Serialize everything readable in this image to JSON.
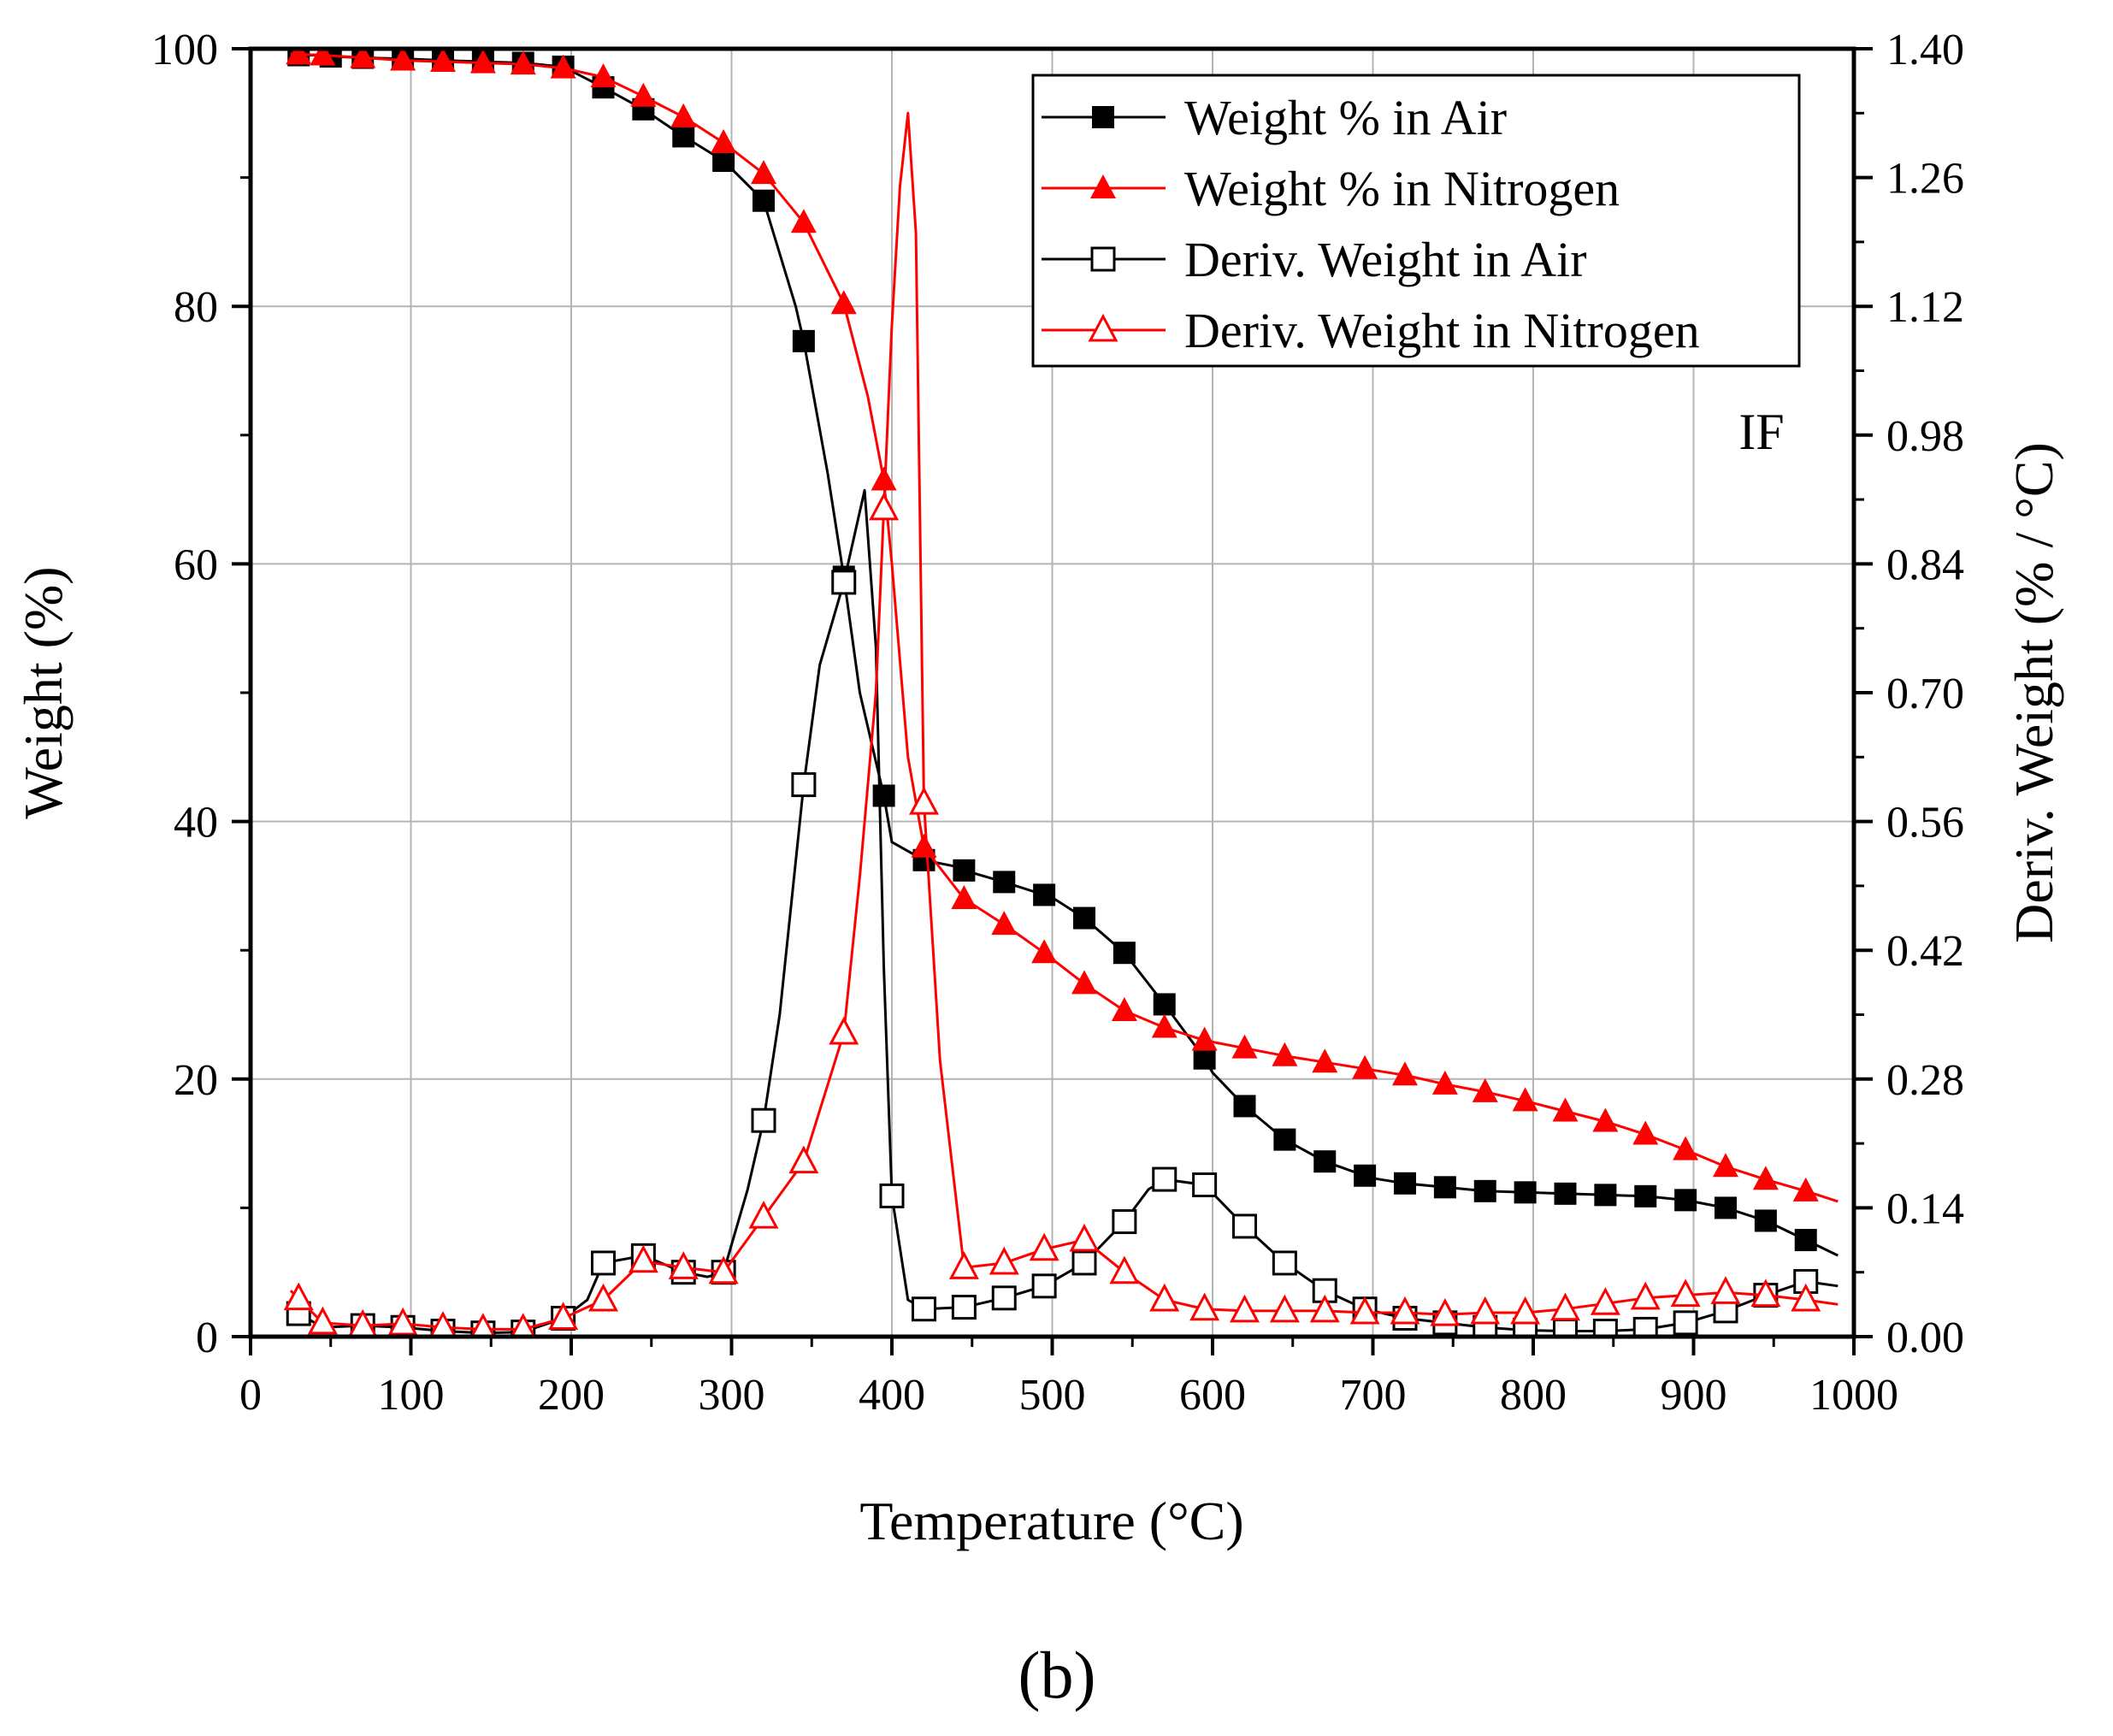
{
  "chart_data": {
    "type": "line",
    "title": "",
    "panel_label": "(b)",
    "annotation": "IF",
    "xlabel": "Temperature (°C)",
    "ylabel_left": "Weight (%)",
    "ylabel_right": "Deriv. Weight (% / °C)",
    "xlim": [
      0,
      1000
    ],
    "ylim_left": [
      0,
      100
    ],
    "ylim_right": [
      0,
      1.4
    ],
    "x_ticks": [
      "0",
      "100",
      "200",
      "300",
      "400",
      "500",
      "600",
      "700",
      "800",
      "900",
      "1000"
    ],
    "y_ticks_left": [
      "0",
      "20",
      "40",
      "60",
      "80",
      "100"
    ],
    "y_ticks_right": [
      "0.00",
      "0.14",
      "0.28",
      "0.42",
      "0.56",
      "0.70",
      "0.84",
      "0.98",
      "1.12",
      "1.26",
      "1.40"
    ],
    "grid": true,
    "legend_position": "top-right",
    "series": [
      {
        "name": "Weight % in Air",
        "axis": "left",
        "color": "#000000",
        "marker": "square-filled",
        "x": [
          25,
          40,
          50,
          70,
          100,
          120,
          145,
          170,
          195,
          220,
          245,
          270,
          295,
          320,
          340,
          345,
          360,
          370,
          380,
          395,
          400,
          420,
          440,
          445,
          470,
          500,
          520,
          545,
          570,
          595,
          600,
          620,
          645,
          670,
          695,
          700,
          720,
          745,
          770,
          795,
          820,
          845,
          870,
          895,
          920,
          945,
          970,
          990
        ],
        "y": [
          99.5,
          99.5,
          99.4,
          99.3,
          99.2,
          99.1,
          99.0,
          98.9,
          98.6,
          97.0,
          95.3,
          93.2,
          91.3,
          88.2,
          80.0,
          77.3,
          67.0,
          59.0,
          50.0,
          42.0,
          38.4,
          37.0,
          36.5,
          36.2,
          35.3,
          34.1,
          32.5,
          29.8,
          25.8,
          21.6,
          20.5,
          17.9,
          15.3,
          13.6,
          12.5,
          12.3,
          11.9,
          11.6,
          11.3,
          11.2,
          11.1,
          11.0,
          10.9,
          10.6,
          10.0,
          9.0,
          7.5,
          6.3
        ],
        "marker_x": [
          30,
          50,
          70,
          95,
          120,
          145,
          170,
          195,
          220,
          245,
          270,
          295,
          320,
          345,
          370,
          395,
          420,
          445,
          470,
          495,
          520,
          545,
          570,
          595,
          620,
          645,
          670,
          695,
          720,
          745,
          770,
          795,
          820,
          845,
          870,
          895,
          920,
          945,
          970
        ]
      },
      {
        "name": "Weight % in Nitrogen",
        "axis": "left",
        "color": "#ff0000",
        "marker": "triangle-filled",
        "x": [
          25,
          45,
          70,
          95,
          120,
          145,
          170,
          195,
          220,
          245,
          270,
          295,
          320,
          345,
          370,
          385,
          395,
          400,
          410,
          420,
          445,
          470,
          495,
          520,
          545,
          570,
          595,
          620,
          645,
          670,
          695,
          720,
          745,
          770,
          795,
          820,
          845,
          870,
          895,
          920,
          945,
          970,
          990
        ],
        "y": [
          99.6,
          99.5,
          99.3,
          99.1,
          99.0,
          98.9,
          98.8,
          98.5,
          97.8,
          96.3,
          94.7,
          92.7,
          90.3,
          86.5,
          80.2,
          73.0,
          66.5,
          60.0,
          45.0,
          38.0,
          34.0,
          32.0,
          29.8,
          27.4,
          25.3,
          24.0,
          23.0,
          22.4,
          21.8,
          21.3,
          20.8,
          20.3,
          19.6,
          19.0,
          18.3,
          17.5,
          16.7,
          15.7,
          14.5,
          13.2,
          12.2,
          11.3,
          10.5
        ],
        "marker_x": [
          30,
          45,
          70,
          95,
          120,
          145,
          170,
          195,
          220,
          245,
          270,
          295,
          320,
          345,
          370,
          395,
          420,
          445,
          470,
          495,
          520,
          545,
          570,
          595,
          620,
          645,
          670,
          695,
          720,
          745,
          770,
          795,
          820,
          845,
          870,
          895,
          920,
          945,
          970
        ]
      },
      {
        "name": "Deriv. Weight in Air",
        "axis": "right",
        "color": "#000000",
        "marker": "square-open",
        "x": [
          25,
          45,
          70,
          95,
          120,
          145,
          170,
          195,
          210,
          220,
          245,
          270,
          285,
          295,
          310,
          320,
          330,
          345,
          355,
          370,
          383,
          390,
          395,
          400,
          410,
          420,
          445,
          470,
          495,
          520,
          545,
          560,
          570,
          595,
          620,
          645,
          670,
          695,
          720,
          745,
          770,
          795,
          820,
          845,
          870,
          895,
          920,
          945,
          970,
          990
        ],
        "y": [
          0.03,
          0.01,
          0.012,
          0.01,
          0.006,
          0.004,
          0.005,
          0.02,
          0.04,
          0.08,
          0.088,
          0.07,
          0.065,
          0.07,
          0.16,
          0.235,
          0.35,
          0.6,
          0.73,
          0.82,
          0.92,
          0.75,
          0.4,
          0.153,
          0.04,
          0.03,
          0.032,
          0.042,
          0.055,
          0.08,
          0.125,
          0.16,
          0.171,
          0.165,
          0.12,
          0.08,
          0.05,
          0.03,
          0.02,
          0.015,
          0.01,
          0.007,
          0.006,
          0.006,
          0.008,
          0.015,
          0.028,
          0.045,
          0.06,
          0.055
        ],
        "marker_x": [
          30,
          70,
          95,
          120,
          145,
          170,
          195,
          220,
          245,
          270,
          295,
          320,
          345,
          370,
          400,
          420,
          445,
          470,
          495,
          520,
          545,
          570,
          595,
          620,
          645,
          670,
          695,
          720,
          745,
          770,
          795,
          820,
          845,
          870,
          895,
          920,
          945,
          970
        ]
      },
      {
        "name": "Deriv. Weight in Nitrogen",
        "axis": "right",
        "color": "#ff0000",
        "marker": "triangle-open",
        "x": [
          25,
          45,
          70,
          95,
          120,
          145,
          170,
          195,
          220,
          245,
          270,
          295,
          320,
          345,
          370,
          380,
          390,
          395,
          400,
          405,
          410,
          415,
          420,
          430,
          445,
          470,
          495,
          520,
          545,
          570,
          595,
          620,
          645,
          670,
          695,
          720,
          745,
          770,
          795,
          820,
          845,
          870,
          895,
          920,
          945,
          970,
          990
        ],
        "y": [
          0.05,
          0.015,
          0.012,
          0.014,
          0.01,
          0.008,
          0.008,
          0.02,
          0.04,
          0.082,
          0.075,
          0.07,
          0.13,
          0.19,
          0.33,
          0.5,
          0.7,
          0.9,
          1.1,
          1.25,
          1.33,
          1.2,
          0.58,
          0.3,
          0.075,
          0.08,
          0.095,
          0.105,
          0.07,
          0.04,
          0.03,
          0.028,
          0.028,
          0.028,
          0.026,
          0.026,
          0.024,
          0.026,
          0.026,
          0.03,
          0.036,
          0.042,
          0.045,
          0.048,
          0.045,
          0.04,
          0.035
        ],
        "marker_x": [
          30,
          45,
          70,
          95,
          120,
          145,
          170,
          195,
          220,
          245,
          270,
          295,
          320,
          345,
          370,
          395,
          420,
          445,
          470,
          495,
          520,
          545,
          570,
          595,
          620,
          645,
          670,
          695,
          720,
          745,
          770,
          795,
          820,
          845,
          870,
          895,
          920,
          945,
          970
        ]
      }
    ]
  }
}
